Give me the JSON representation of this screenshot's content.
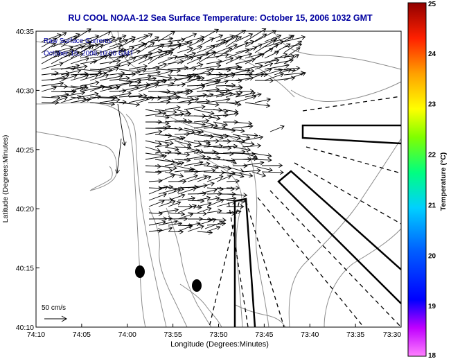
{
  "title": "RU COOL  NOAA-12  Sea Surface Temperature:  October 15, 2006 1032 GMT",
  "legend": {
    "line1": "Raw Surface Currents",
    "line2": "October 15, 2006 10:00 GMT"
  },
  "scale": {
    "label": "50 cm/s"
  },
  "xaxis": {
    "label": "Longitude (Degrees:Minutes)",
    "ticks": [
      "74:10",
      "74:05",
      "74:00",
      "73:55",
      "73:50",
      "73:45",
      "73:40",
      "73:35",
      "73:30"
    ]
  },
  "yaxis": {
    "label": "Latitude (Degrees:Minutes)",
    "ticks": [
      "40:10",
      "40:15",
      "40:20",
      "40:25",
      "40:30",
      "40:35"
    ]
  },
  "colorbar": {
    "label": "Temperature (°C)",
    "min": 18,
    "max": 25,
    "ticks": [
      "18",
      "19",
      "20",
      "21",
      "22",
      "23",
      "24",
      "25"
    ]
  },
  "colors": {
    "title": "#0000a0",
    "land": "#ffffff",
    "ocean": "#ffffff",
    "contour": "#8c8c8c",
    "vector": "#000000"
  },
  "chart_data": {
    "type": "vector-field-map",
    "x_range_deg": [
      "74:10",
      "73:30"
    ],
    "y_range_deg": [
      "40:10",
      "40:35"
    ],
    "vectors_note": "surface current arrows, predominantly eastward flow north of 40:20"
  }
}
